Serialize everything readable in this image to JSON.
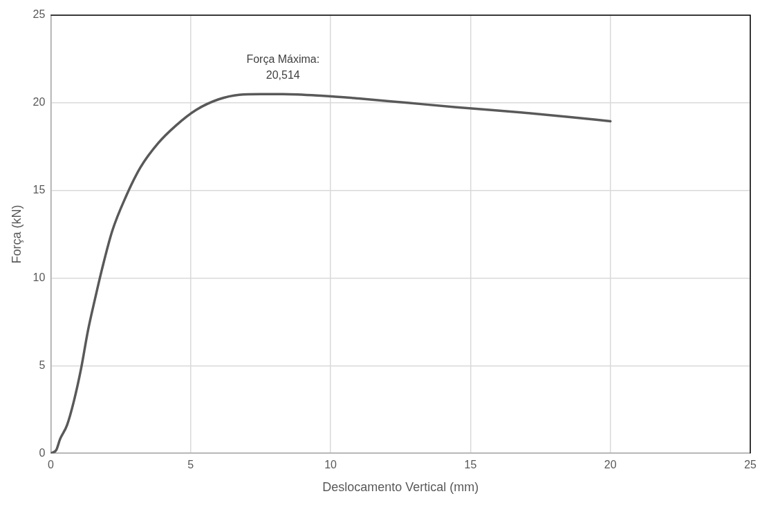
{
  "chart_data": {
    "type": "line",
    "xlabel": "Deslocamento Vertical (mm)",
    "ylabel": "Força (kN)",
    "series": [
      {
        "color": "#595959",
        "x": [
          0,
          0.2,
          0.33,
          0.58,
          0.83,
          1.08,
          1.33,
          1.58,
          1.83,
          2.2,
          2.7,
          3.2,
          3.84,
          4.47,
          5.2,
          6,
          6.73,
          7.5,
          8.3,
          9.74,
          11,
          12.75,
          14.5,
          16.8,
          18.5,
          20
        ],
        "values": [
          0,
          0.2,
          0.8,
          1.6,
          3,
          4.8,
          7,
          8.8,
          10.5,
          12.7,
          14.7,
          16.3,
          17.7,
          18.7,
          19.6,
          20.2,
          20.46,
          20.5,
          20.5,
          20.4,
          20.25,
          20,
          19.75,
          19.45,
          19.2,
          18.95
        ]
      }
    ],
    "xlim": [
      0,
      25
    ],
    "xticks": [
      0,
      5,
      10,
      15,
      20,
      25
    ],
    "ylim": [
      0,
      25
    ],
    "yticks": [
      0,
      5,
      10,
      15,
      20,
      25
    ],
    "grid": true,
    "legend": false,
    "marker": "none",
    "line_style": "solid",
    "annotations": [
      {
        "text": "Força Máxima:\n20,514",
        "x": 8.3,
        "y": 20.514
      }
    ]
  }
}
